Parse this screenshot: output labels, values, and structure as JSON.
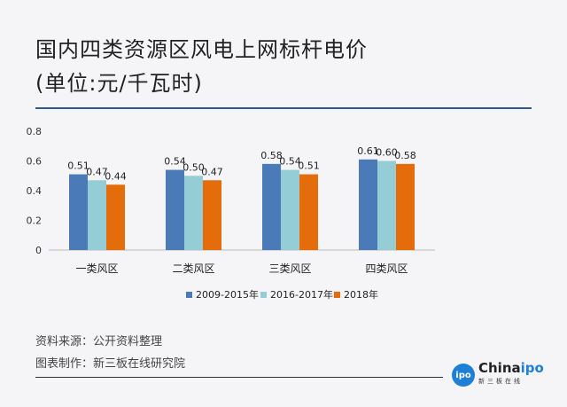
{
  "title_line1": "国内四类资源区风电上网标杆电价",
  "title_line2": "(单位:元/千瓦时)",
  "source": "资料来源：公开资料整理",
  "maker": "图表制作：新三板在线研究院",
  "logo": {
    "text": "Chinaipo",
    "sub": "新三板在线",
    "badge": "ipo"
  },
  "colors": {
    "s1": "#4a7ab8",
    "s2": "#95cdd6",
    "s3": "#e46c0a",
    "line": "#2f5b8a"
  },
  "chart_data": {
    "type": "bar",
    "title": "国内四类资源区风电上网标杆电价 (单位:元/千瓦时)",
    "categories": [
      "一类风区",
      "二类风区",
      "三类风区",
      "四类风区"
    ],
    "series": [
      {
        "name": "2009-2015年",
        "values": [
          0.51,
          0.54,
          0.58,
          0.61
        ]
      },
      {
        "name": "2016-2017年",
        "values": [
          0.47,
          0.5,
          0.54,
          0.6
        ]
      },
      {
        "name": "2018年",
        "values": [
          0.44,
          0.47,
          0.51,
          0.58
        ]
      }
    ],
    "yticks": [
      "0",
      "0.2",
      "0.4",
      "0.6",
      "0.8"
    ],
    "ylim": [
      0,
      0.8
    ],
    "grid": false,
    "legend": "bottom"
  }
}
